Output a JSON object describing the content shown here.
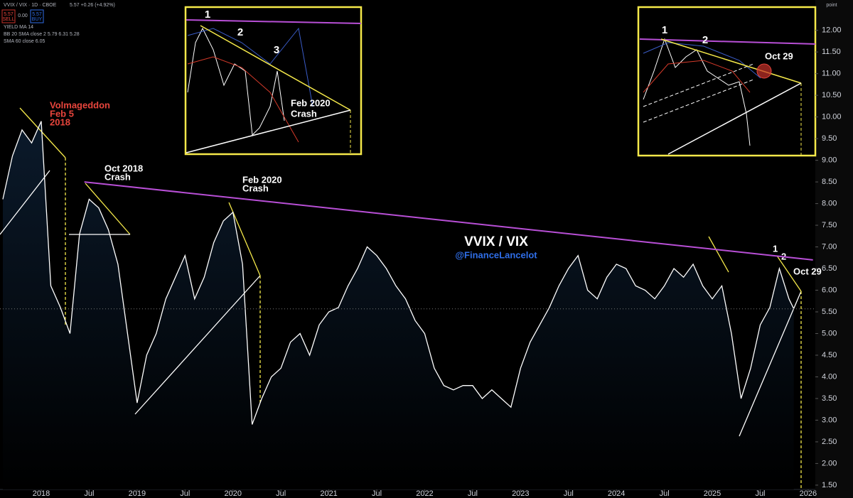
{
  "chart_data": {
    "type": "line",
    "title": "VVIX / VIX",
    "subtitle": "@FinanceLancelot",
    "color": "#ffffff",
    "fill": true,
    "x": [
      2017.6,
      2017.7,
      2017.8,
      2017.9,
      2018.0,
      2018.1,
      2018.2,
      2018.3,
      2018.4,
      2018.5,
      2018.6,
      2018.7,
      2018.8,
      2018.9,
      2019.0,
      2019.1,
      2019.2,
      2019.3,
      2019.4,
      2019.5,
      2019.6,
      2019.7,
      2019.8,
      2019.9,
      2020.0,
      2020.1,
      2020.2,
      2020.3,
      2020.4,
      2020.5,
      2020.6,
      2020.7,
      2020.8,
      2020.9,
      2021.0,
      2021.1,
      2021.2,
      2021.3,
      2021.4,
      2021.5,
      2021.6,
      2021.7,
      2021.8,
      2021.9,
      2022.0,
      2022.1,
      2022.2,
      2022.3,
      2022.4,
      2022.5,
      2022.6,
      2022.7,
      2022.8,
      2022.9,
      2023.0,
      2023.1,
      2023.2,
      2023.3,
      2023.4,
      2023.5,
      2023.6,
      2023.7,
      2023.8,
      2023.9,
      2024.0,
      2024.1,
      2024.2,
      2024.3,
      2024.4,
      2024.5,
      2024.6,
      2024.7,
      2024.8,
      2024.9,
      2025.0,
      2025.1,
      2025.2,
      2025.3,
      2025.4,
      2025.5,
      2025.6,
      2025.7,
      2025.8,
      2025.85
    ],
    "values": [
      8.1,
      9.1,
      9.7,
      9.4,
      9.9,
      6.1,
      5.6,
      5.0,
      7.3,
      8.1,
      7.9,
      7.4,
      6.6,
      5.0,
      3.4,
      4.5,
      5.0,
      5.8,
      6.3,
      6.8,
      5.8,
      6.3,
      7.1,
      7.6,
      7.8,
      6.6,
      2.9,
      3.5,
      4.0,
      4.2,
      4.8,
      5.0,
      4.5,
      5.2,
      5.5,
      5.6,
      6.1,
      6.5,
      7.0,
      6.8,
      6.5,
      6.1,
      5.8,
      5.3,
      5.0,
      4.2,
      3.8,
      3.7,
      3.8,
      3.8,
      3.5,
      3.7,
      3.5,
      3.3,
      4.2,
      4.8,
      5.2,
      5.6,
      6.1,
      6.5,
      6.8,
      6.0,
      5.8,
      6.3,
      6.6,
      6.5,
      6.1,
      6.0,
      5.8,
      6.1,
      6.5,
      6.3,
      6.6,
      6.1,
      5.8,
      6.1,
      5.0,
      3.5,
      4.2,
      5.2,
      5.6,
      6.5,
      5.8,
      5.57
    ],
    "trendline": {
      "x": [
        2018.45,
        2026.05
      ],
      "values": [
        8.5,
        6.7
      ],
      "color": "#b84fd6"
    },
    "xlim": [
      2017.57,
      2026.06
    ],
    "xticks": [
      2018,
      {
        "value": 2018.5,
        "label": "Jul"
      },
      2019,
      {
        "value": 2019.5,
        "label": "Jul"
      },
      2020,
      {
        "value": 2020.5,
        "label": "Jul"
      },
      2021,
      {
        "value": 2021.5,
        "label": "Jul"
      },
      2022,
      {
        "value": 2022.5,
        "label": "Jul"
      },
      2023,
      {
        "value": 2023.5,
        "label": "Jul"
      },
      2024,
      {
        "value": 2024.5,
        "label": "Jul"
      },
      2025,
      {
        "value": 2025.5,
        "label": "Jul"
      },
      2026
    ],
    "ylim": [
      1.4,
      12.7
    ],
    "yticks": [
      {
        "value": 1.5,
        "label": "1.50"
      },
      {
        "value": 2,
        "label": "2.00"
      },
      {
        "value": 2.5,
        "label": "2.50"
      },
      {
        "value": 3,
        "label": "3.00"
      },
      {
        "value": 3.5,
        "label": "3.50"
      },
      {
        "value": 4,
        "label": "4.00"
      },
      {
        "value": 4.5,
        "label": "4.50"
      },
      {
        "value": 5,
        "label": "5.00"
      },
      {
        "value": 5.5,
        "label": "5.50"
      },
      {
        "value": 6,
        "label": "6.00"
      },
      {
        "value": 6.5,
        "label": "6.50"
      },
      {
        "value": 7,
        "label": "7.00"
      },
      {
        "value": 7.5,
        "label": "7.50"
      },
      {
        "value": 8,
        "label": "8.00"
      },
      {
        "value": 8.5,
        "label": "8.50"
      },
      {
        "value": 9,
        "label": "9.00"
      },
      {
        "value": 9.5,
        "label": "9.50"
      },
      {
        "value": 10,
        "label": "10.00"
      },
      {
        "value": 10.5,
        "label": "10.50"
      },
      {
        "value": 11,
        "label": "11.00"
      },
      {
        "value": 11.5,
        "label": "11.50"
      },
      {
        "value": 12,
        "label": "12.00"
      }
    ],
    "grid": false,
    "annotations": [
      [
        "Volmageddon",
        "Feb 5",
        "2018"
      ],
      [
        "Oct 2018",
        "Crash"
      ],
      [
        "Feb 2020",
        "Crash"
      ],
      [
        "Oct 29"
      ],
      [
        "1"
      ],
      [
        "2"
      ]
    ]
  },
  "header": {
    "symbol": "VVIX / VIX · 1D · CBOE",
    "quote": "5.57 +0.26 (+4.92%)",
    "sell": "5.57",
    "sell_label": "SELL",
    "spread": "0.00",
    "buy": "5.57",
    "buy_label": "BUY",
    "indicators": [
      "YIELD MA 14",
      "BB 20 SMA close 2  5.79  6.31  5.28",
      "SMA 60 close  6.05"
    ],
    "scale": "point"
  },
  "insets": [
    {
      "labels": [
        "1",
        "2",
        "3"
      ],
      "note": [
        "Feb 2020",
        "Crash"
      ]
    },
    {
      "labels": [
        "1",
        "2"
      ],
      "note": [
        "Oct 29"
      ]
    }
  ]
}
